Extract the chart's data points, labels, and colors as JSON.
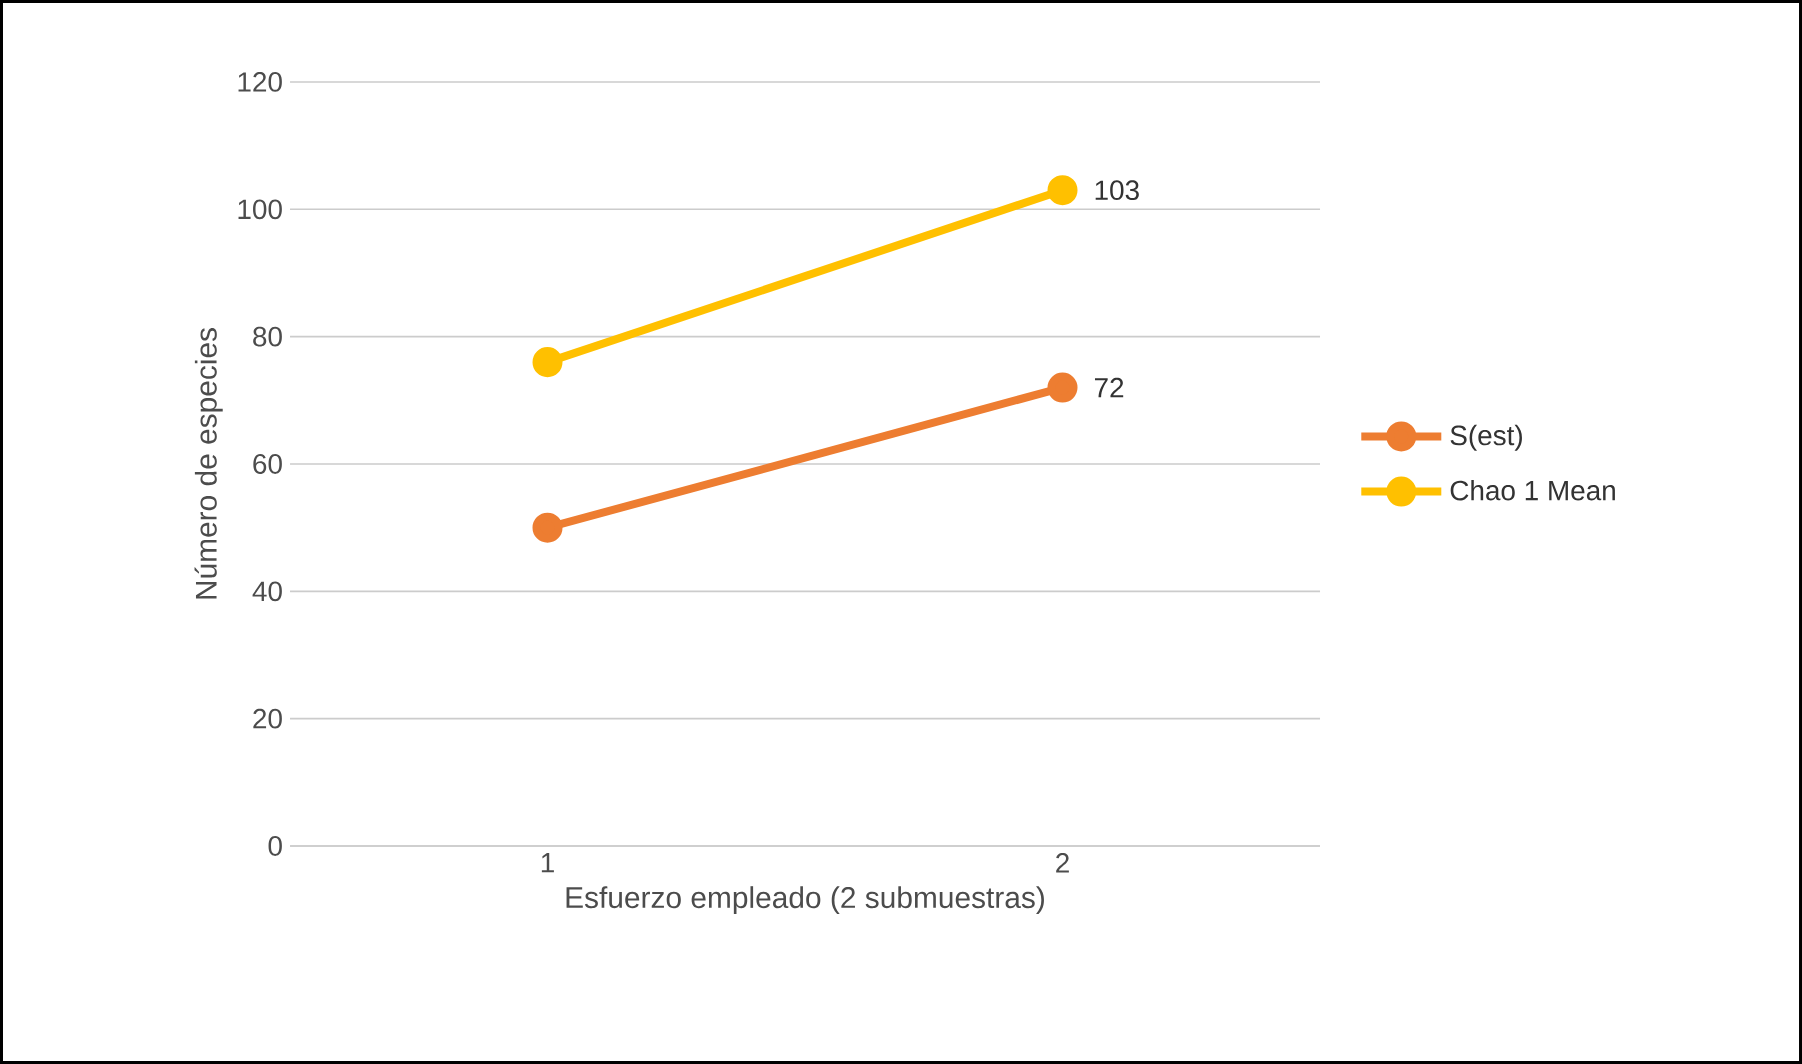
{
  "chart_data": {
    "type": "line",
    "xlabel": "Esfuerzo empleado (2 submuestras)",
    "ylabel": "Número de especies",
    "categories": [
      "1",
      "2"
    ],
    "series": [
      {
        "name": "S(est)",
        "color": "#ed7d31",
        "values": [
          50,
          72
        ],
        "value_labels": [
          null,
          "72"
        ]
      },
      {
        "name": "Chao 1 Mean",
        "color": "#ffc000",
        "values": [
          76,
          103
        ],
        "value_labels": [
          null,
          "103"
        ]
      }
    ],
    "ylim": [
      0,
      120
    ],
    "yticks": [
      0,
      20,
      40,
      60,
      80,
      100,
      120
    ],
    "grid": "y",
    "legend": "right",
    "marker": "circle"
  }
}
